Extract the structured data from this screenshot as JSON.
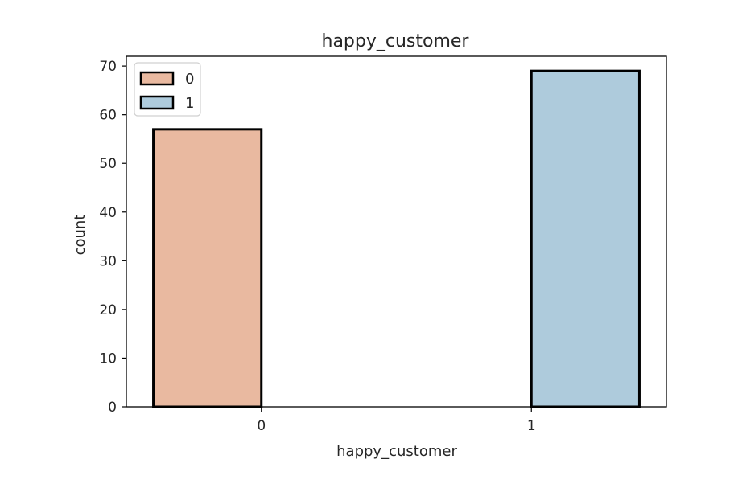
{
  "chart_data": {
    "type": "bar",
    "title": "happy_customer",
    "xlabel": "happy_customer",
    "ylabel": "count",
    "categories": [
      "0",
      "1"
    ],
    "series": [
      {
        "name": "0",
        "color": "#e9b9a0",
        "values": [
          57,
          0
        ]
      },
      {
        "name": "1",
        "color": "#aecbdc",
        "values": [
          0,
          69
        ]
      }
    ],
    "ylim": [
      0,
      72
    ],
    "yticks": [
      0,
      10,
      20,
      30,
      40,
      50,
      60,
      70
    ],
    "grid": false,
    "legend": {
      "placement": "top-left",
      "entries": [
        "0",
        "1"
      ]
    },
    "edge_color": "#000000"
  }
}
